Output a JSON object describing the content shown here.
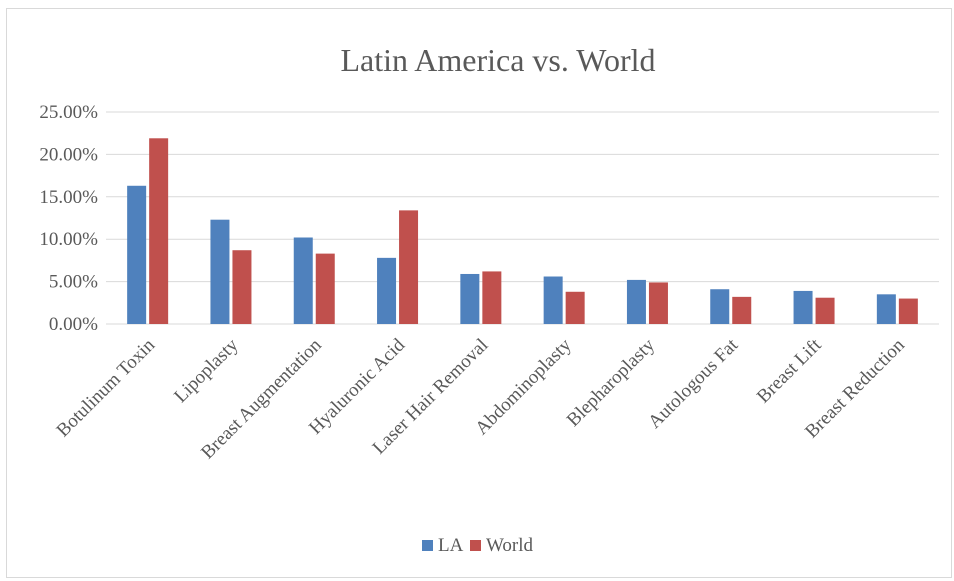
{
  "chart_data": {
    "type": "bar",
    "title": "Latin America vs. World",
    "xlabel": "",
    "ylabel": "",
    "categories": [
      "Botulinum Toxin",
      "Lipoplasty",
      "Breast Augmentation",
      "Hyaluronic Acid",
      "Laser Hair Removal",
      "Abdominoplasty",
      "Blepharoplasty",
      "Autologous Fat",
      "Breast Lift",
      "Breast Reduction"
    ],
    "series": [
      {
        "name": "LA",
        "color": "#4f81bd",
        "values": [
          16.3,
          12.3,
          10.2,
          7.8,
          5.9,
          5.6,
          5.2,
          4.1,
          3.9,
          3.5
        ]
      },
      {
        "name": "World",
        "color": "#c0504d",
        "values": [
          21.9,
          8.7,
          8.3,
          13.4,
          6.2,
          3.8,
          4.9,
          3.2,
          3.1,
          3.0
        ]
      }
    ],
    "ylim": [
      0,
      25
    ],
    "yticks": [
      "0.00%",
      "5.00%",
      "10.00%",
      "15.00%",
      "20.00%",
      "25.00%"
    ],
    "grid": true,
    "legend_position": "bottom"
  }
}
